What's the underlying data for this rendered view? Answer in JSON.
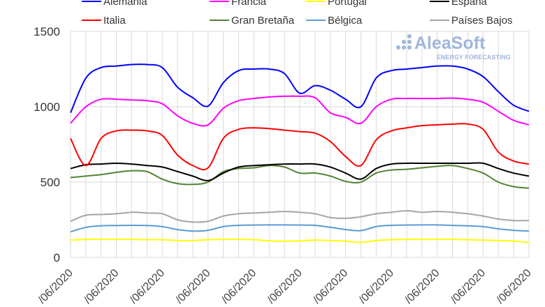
{
  "chart_data": {
    "type": "line",
    "title": "",
    "xlabel": "",
    "ylabel": "",
    "ylim": [
      0,
      1500
    ],
    "yticks": [
      0,
      500,
      1000,
      1500
    ],
    "grid": true,
    "legend_position": "top",
    "x_tick_labels": [
      "/06/2020",
      "/06/2020",
      "/06/2020",
      "/06/2020",
      "/06/2020",
      "/06/2020",
      "/06/2020",
      "/06/2020",
      "/06/2020",
      "/06/2020",
      "/06/2020"
    ],
    "series": [
      {
        "name": "Alemania",
        "color": "#0000ff",
        "values": [
          960,
          1190,
          1260,
          1270,
          1280,
          1280,
          1260,
          1130,
          1060,
          1005,
          1160,
          1240,
          1250,
          1250,
          1220,
          1090,
          1140,
          1110,
          1050,
          1000,
          1190,
          1240,
          1250,
          1260,
          1270,
          1270,
          1250,
          1200,
          1100,
          1010,
          970
        ]
      },
      {
        "name": "Francia",
        "color": "#ff00ff",
        "values": [
          890,
          1000,
          1050,
          1050,
          1045,
          1040,
          1020,
          940,
          890,
          880,
          990,
          1040,
          1055,
          1065,
          1070,
          1070,
          1060,
          960,
          930,
          890,
          1000,
          1050,
          1055,
          1055,
          1055,
          1058,
          1050,
          1030,
          970,
          910,
          880
        ]
      },
      {
        "name": "Portugal",
        "color": "#ffff00",
        "values": [
          115,
          120,
          120,
          120,
          120,
          118,
          118,
          112,
          112,
          118,
          120,
          120,
          118,
          110,
          108,
          110,
          115,
          112,
          108,
          100,
          112,
          118,
          120,
          120,
          120,
          120,
          118,
          115,
          112,
          108,
          100
        ]
      },
      {
        "name": "España",
        "color": "#000000",
        "values": [
          590,
          615,
          620,
          625,
          620,
          610,
          600,
          570,
          540,
          510,
          560,
          600,
          610,
          615,
          620,
          620,
          620,
          600,
          560,
          520,
          590,
          620,
          625,
          625,
          625,
          625,
          625,
          625,
          590,
          560,
          540
        ]
      },
      {
        "name": "Italia",
        "color": "#ff0000",
        "values": [
          790,
          610,
          790,
          840,
          845,
          840,
          810,
          680,
          610,
          595,
          790,
          850,
          860,
          855,
          845,
          835,
          825,
          770,
          670,
          610,
          780,
          840,
          860,
          875,
          880,
          885,
          885,
          850,
          700,
          640,
          620
        ]
      },
      {
        "name": "Gran Bretaña",
        "color": "#548235",
        "values": [
          530,
          540,
          550,
          565,
          575,
          570,
          520,
          490,
          485,
          500,
          570,
          590,
          595,
          610,
          600,
          560,
          560,
          540,
          505,
          500,
          560,
          580,
          585,
          595,
          605,
          610,
          590,
          560,
          500,
          470,
          460
        ]
      },
      {
        "name": "Bélgica",
        "color": "#5b9bd5",
        "values": [
          170,
          200,
          210,
          212,
          213,
          212,
          205,
          185,
          175,
          180,
          205,
          213,
          215,
          216,
          216,
          215,
          213,
          200,
          185,
          178,
          205,
          213,
          215,
          216,
          216,
          213,
          210,
          205,
          190,
          180,
          175
        ]
      },
      {
        "name": "Países Bajos",
        "color": "#a5a5a5",
        "values": [
          240,
          280,
          285,
          290,
          300,
          295,
          290,
          250,
          235,
          240,
          275,
          290,
          295,
          300,
          305,
          300,
          290,
          265,
          260,
          270,
          290,
          300,
          310,
          300,
          305,
          300,
          290,
          275,
          255,
          245,
          245
        ]
      }
    ]
  },
  "watermark": {
    "brand": "AleaSoft",
    "tagline": "ENERGY FORECASTING"
  }
}
